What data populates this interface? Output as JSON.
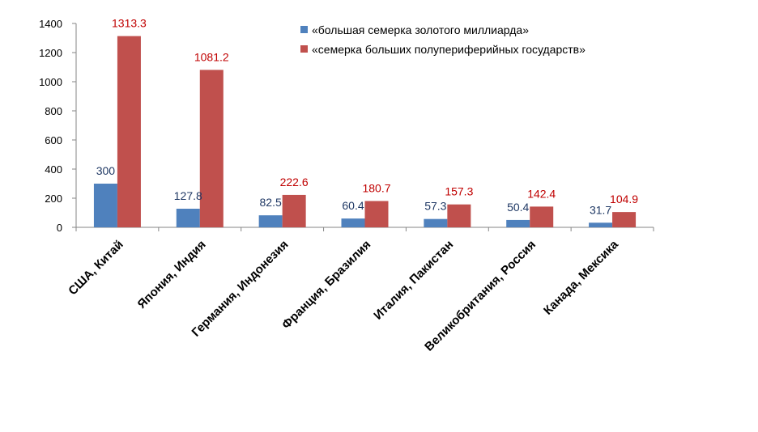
{
  "chart_data": {
    "type": "bar",
    "categories": [
      "США, Китай",
      "Япония, Индия",
      "Германия, Индонезия",
      "Франция, Бразилия",
      "Италия, Пакистан",
      "Великобритания, Россия",
      "Канада, Мексика"
    ],
    "series": [
      {
        "name": "«большая семерка золотого миллиарда»",
        "values": [
          300,
          127.8,
          82.5,
          60.4,
          57.3,
          50.4,
          31.7
        ],
        "color": "#4F81BD",
        "label_color": "#1F3864"
      },
      {
        "name": "«семерка больших полупериферийных государств»",
        "values": [
          1313.3,
          1081.2,
          222.6,
          180.7,
          157.3,
          142.4,
          104.9
        ],
        "color": "#C0504D",
        "label_color": "#C00000"
      }
    ],
    "yticks": [
      "0",
      "200",
      "400",
      "600",
      "800",
      "1000",
      "1200",
      "1400"
    ],
    "ylim": [
      0,
      1400
    ],
    "grid": false,
    "legend_position": "top-right",
    "title": "",
    "xlabel": "",
    "ylabel": ""
  }
}
